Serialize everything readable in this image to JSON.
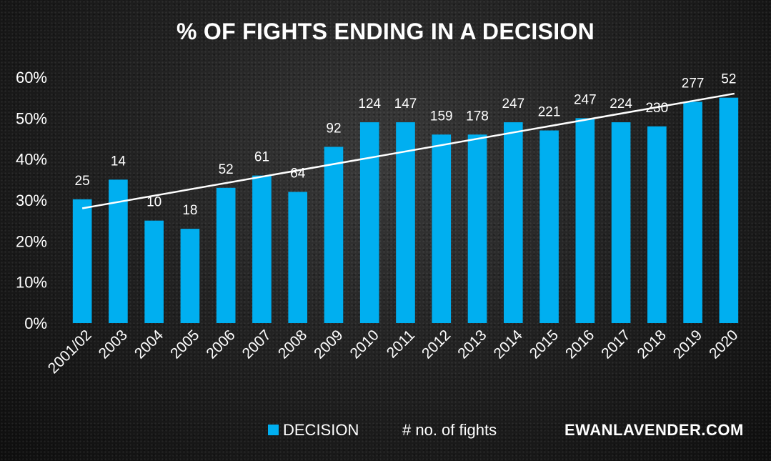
{
  "chart_data": {
    "type": "bar",
    "title": "% OF FIGHTS ENDING IN A DECISION",
    "xlabel": "",
    "ylabel": "",
    "ylim": [
      0,
      60
    ],
    "yticks": [
      "0%",
      "10%",
      "20%",
      "30%",
      "40%",
      "50%",
      "60%"
    ],
    "ytick_values": [
      0,
      10,
      20,
      30,
      40,
      50,
      60
    ],
    "categories": [
      "2001/02",
      "2003",
      "2004",
      "2005",
      "2006",
      "2007",
      "2008",
      "2009",
      "2010",
      "2011",
      "2012",
      "2013",
      "2014",
      "2015",
      "2016",
      "2017",
      "2018",
      "2019",
      "2020"
    ],
    "series": [
      {
        "name": "DECISION",
        "values": [
          30.2,
          35.0,
          25.0,
          23.0,
          33.0,
          36.0,
          32.0,
          43.0,
          49.0,
          49.0,
          46.0,
          46.0,
          49.0,
          47.0,
          50.0,
          49.0,
          48.0,
          54.0,
          55.0
        ],
        "color": "#00aff0"
      }
    ],
    "data_labels": [
      "25",
      "14",
      "10",
      "18",
      "52",
      "61",
      "64",
      "92",
      "124",
      "147",
      "159",
      "178",
      "247",
      "221",
      "247",
      "224",
      "230",
      "277",
      "52"
    ],
    "data_labels_name": "# no. of fights",
    "trendline": {
      "type": "linear",
      "start": 28.0,
      "end": 56.0,
      "color": "#ffffff"
    },
    "grid": false,
    "legend_position": "bottom"
  },
  "legend": {
    "decision_label": "DECISION",
    "fights_label": "# no. of fights",
    "watermark": "EWANLAVENDER.COM"
  },
  "colors": {
    "bar": "#00aff0",
    "text": "#ffffff",
    "trendline": "#ffffff"
  }
}
